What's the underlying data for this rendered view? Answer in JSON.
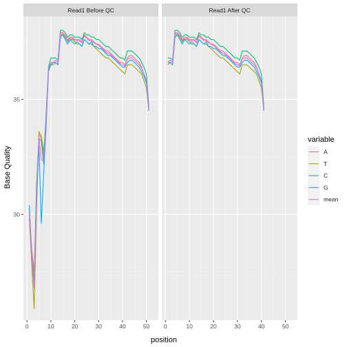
{
  "chart_data": {
    "type": "line",
    "xlabel": "position",
    "ylabel": "Base Quality",
    "x_range": [
      -1.5,
      55
    ],
    "y_range": [
      25.4,
      38.6
    ],
    "x_ticks": [
      0,
      10,
      20,
      30,
      40,
      50
    ],
    "y_ticks": [
      30,
      35
    ],
    "grid": true,
    "legend": {
      "title": "variable",
      "position": "right",
      "entries": [
        "A",
        "T",
        "C",
        "G",
        "mean"
      ]
    },
    "colors": {
      "A": "#F8766D",
      "T": "#A3A500",
      "C": "#00BF7D",
      "G": "#00B0F6",
      "mean": "#E76BF3"
    },
    "panels": [
      {
        "title": "Read1 Before QC",
        "x": [
          1,
          2,
          3,
          4,
          5,
          6,
          7,
          8,
          9,
          10,
          11,
          12,
          13,
          14,
          15,
          16,
          17,
          18,
          19,
          20,
          21,
          22,
          23,
          24,
          25,
          26,
          27,
          28,
          29,
          30,
          31,
          32,
          33,
          34,
          35,
          36,
          37,
          38,
          39,
          40,
          41,
          42,
          43,
          44,
          45,
          46,
          47,
          48,
          49,
          50,
          51
        ],
        "series": [
          {
            "name": "A",
            "values": [
              30.0,
              28.5,
              27.5,
              31.0,
              33.5,
              33.3,
              32.5,
              34.0,
              36.3,
              36.6,
              36.6,
              36.7,
              36.6,
              37.9,
              37.9,
              37.8,
              37.6,
              37.7,
              37.7,
              37.6,
              37.6,
              37.6,
              37.5,
              37.8,
              37.7,
              37.6,
              37.6,
              37.5,
              37.4,
              37.4,
              37.3,
              37.2,
              37.1,
              37.1,
              37.0,
              36.9,
              36.8,
              36.7,
              36.6,
              36.6,
              36.5,
              36.8,
              36.9,
              36.9,
              36.8,
              36.7,
              36.6,
              36.4,
              36.1,
              35.8,
              34.6
            ]
          },
          {
            "name": "T",
            "values": [
              29.8,
              27.8,
              25.9,
              30.2,
              33.6,
              33.4,
              32.7,
              34.2,
              36.2,
              36.5,
              36.5,
              36.6,
              36.5,
              37.8,
              37.8,
              37.7,
              37.5,
              37.6,
              37.6,
              37.5,
              37.4,
              37.4,
              37.3,
              37.6,
              37.5,
              37.4,
              37.4,
              37.3,
              37.2,
              37.1,
              37.0,
              36.9,
              36.8,
              36.8,
              36.7,
              36.6,
              36.5,
              36.4,
              36.3,
              36.2,
              36.1,
              36.5,
              36.5,
              36.5,
              36.4,
              36.3,
              36.2,
              36.1,
              35.8,
              35.5,
              34.5
            ]
          },
          {
            "name": "C",
            "values": [
              30.3,
              28.2,
              27.1,
              31.3,
              33.3,
              33.2,
              32.2,
              34.4,
              36.4,
              36.8,
              36.8,
              36.8,
              36.7,
              38.0,
              38.0,
              37.9,
              37.7,
              37.8,
              37.8,
              37.7,
              37.7,
              37.7,
              37.6,
              37.9,
              37.8,
              37.8,
              37.7,
              37.7,
              37.6,
              37.6,
              37.5,
              37.4,
              37.3,
              37.3,
              37.2,
              37.1,
              37.0,
              36.9,
              36.8,
              36.8,
              36.7,
              37.1,
              37.1,
              37.1,
              37.0,
              36.9,
              36.8,
              36.6,
              36.4,
              36.1,
              34.7
            ]
          },
          {
            "name": "G",
            "values": [
              30.4,
              28.0,
              26.9,
              30.6,
              33.0,
              29.6,
              31.8,
              33.8,
              36.2,
              36.5,
              36.6,
              36.6,
              36.5,
              37.7,
              37.8,
              37.6,
              37.4,
              37.6,
              37.5,
              37.4,
              37.5,
              37.4,
              37.3,
              37.6,
              37.5,
              37.4,
              37.5,
              37.3,
              37.3,
              37.2,
              37.2,
              37.1,
              37.0,
              36.9,
              36.9,
              36.8,
              36.7,
              36.6,
              36.5,
              36.4,
              36.4,
              36.6,
              36.7,
              36.7,
              36.6,
              36.5,
              36.4,
              36.2,
              36.0,
              35.7,
              34.5
            ]
          },
          {
            "name": "mean",
            "values": [
              30.1,
              28.1,
              26.8,
              30.8,
              33.4,
              32.4,
              32.3,
              34.1,
              36.3,
              36.6,
              36.6,
              36.7,
              36.6,
              37.85,
              37.85,
              37.75,
              37.55,
              37.65,
              37.65,
              37.55,
              37.55,
              37.55,
              37.45,
              37.75,
              37.65,
              37.55,
              37.55,
              37.45,
              37.4,
              37.35,
              37.25,
              37.15,
              37.05,
              37.0,
              36.95,
              36.85,
              36.75,
              36.65,
              36.55,
              36.5,
              36.45,
              36.75,
              36.8,
              36.8,
              36.7,
              36.6,
              36.5,
              36.35,
              36.1,
              35.8,
              34.6
            ]
          }
        ]
      },
      {
        "title": "Read1 After QC",
        "x": [
          1,
          2,
          3,
          4,
          5,
          6,
          7,
          8,
          9,
          10,
          11,
          12,
          13,
          14,
          15,
          16,
          17,
          18,
          19,
          20,
          21,
          22,
          23,
          24,
          25,
          26,
          27,
          28,
          29,
          30,
          31,
          32,
          33,
          34,
          35,
          36,
          37,
          38,
          39,
          40,
          41
        ],
        "series": [
          {
            "name": "A",
            "values": [
              36.6,
              36.7,
              36.6,
              37.9,
              37.9,
              37.8,
              37.6,
              37.7,
              37.7,
              37.6,
              37.6,
              37.6,
              37.5,
              37.8,
              37.7,
              37.6,
              37.6,
              37.5,
              37.4,
              37.4,
              37.3,
              37.2,
              37.1,
              37.1,
              37.0,
              36.9,
              36.8,
              36.7,
              36.6,
              36.6,
              36.5,
              36.8,
              36.9,
              36.9,
              36.8,
              36.7,
              36.6,
              36.4,
              36.1,
              35.8,
              34.6
            ]
          },
          {
            "name": "T",
            "values": [
              36.5,
              36.6,
              36.5,
              37.8,
              37.8,
              37.7,
              37.5,
              37.6,
              37.6,
              37.5,
              37.4,
              37.4,
              37.3,
              37.6,
              37.5,
              37.4,
              37.4,
              37.3,
              37.2,
              37.1,
              37.0,
              36.9,
              36.8,
              36.8,
              36.7,
              36.6,
              36.5,
              36.4,
              36.3,
              36.2,
              36.1,
              36.5,
              36.5,
              36.5,
              36.4,
              36.3,
              36.2,
              36.1,
              35.8,
              35.5,
              34.5
            ]
          },
          {
            "name": "C",
            "values": [
              36.8,
              36.8,
              36.7,
              38.0,
              38.0,
              37.9,
              37.7,
              37.8,
              37.8,
              37.7,
              37.7,
              37.7,
              37.6,
              37.9,
              37.8,
              37.8,
              37.7,
              37.7,
              37.6,
              37.6,
              37.5,
              37.4,
              37.3,
              37.3,
              37.2,
              37.1,
              37.0,
              36.9,
              36.8,
              36.8,
              36.7,
              37.1,
              37.1,
              37.1,
              37.0,
              36.9,
              36.8,
              36.6,
              36.4,
              36.1,
              34.7
            ]
          },
          {
            "name": "G",
            "values": [
              36.6,
              36.6,
              36.5,
              37.7,
              37.8,
              37.6,
              37.4,
              37.6,
              37.5,
              37.4,
              37.5,
              37.4,
              37.3,
              37.6,
              37.5,
              37.4,
              37.5,
              37.3,
              37.3,
              37.2,
              37.2,
              37.1,
              37.0,
              36.9,
              36.9,
              36.8,
              36.7,
              36.6,
              36.5,
              36.4,
              36.4,
              36.6,
              36.7,
              36.7,
              36.6,
              36.5,
              36.4,
              36.2,
              36.0,
              35.7,
              34.5
            ]
          },
          {
            "name": "mean",
            "values": [
              36.6,
              36.7,
              36.6,
              37.85,
              37.85,
              37.75,
              37.55,
              37.65,
              37.65,
              37.55,
              37.55,
              37.55,
              37.45,
              37.75,
              37.65,
              37.55,
              37.55,
              37.45,
              37.4,
              37.35,
              37.25,
              37.15,
              37.05,
              37.0,
              36.95,
              36.85,
              36.75,
              36.65,
              36.55,
              36.5,
              36.45,
              36.75,
              36.8,
              36.8,
              36.7,
              36.6,
              36.5,
              36.35,
              36.1,
              35.8,
              34.6
            ]
          }
        ]
      }
    ]
  }
}
